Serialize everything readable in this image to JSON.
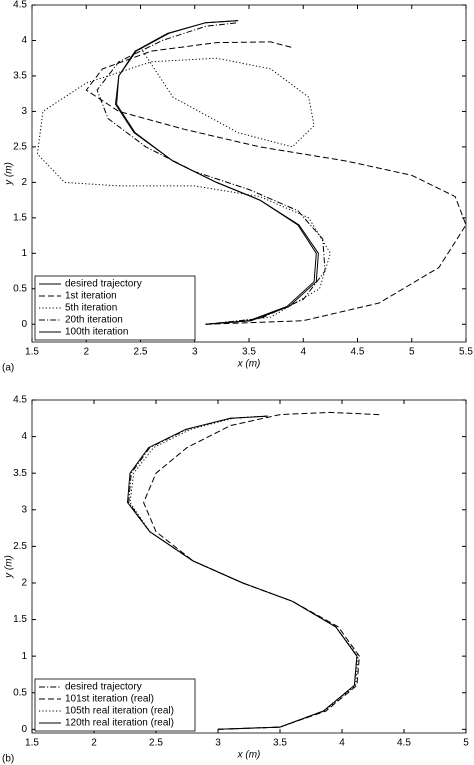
{
  "chart_data": [
    {
      "type": "line",
      "panel": "(a)",
      "xlabel": "x (m)",
      "ylabel": "y (m)",
      "xlim": [
        1.5,
        5.5
      ],
      "ylim": [
        -0.25,
        4.5
      ],
      "xticks": [
        1.5,
        2,
        2.5,
        3,
        3.5,
        4,
        4.5,
        5,
        5.5
      ],
      "yticks": [
        0,
        0.5,
        1,
        1.5,
        2,
        2.5,
        3,
        3.5,
        4,
        4.5
      ],
      "legend": "lower left",
      "series": [
        {
          "name": "desired trajectory",
          "color": "#000000",
          "dash": "solid",
          "x": [
            3.1,
            3.5,
            3.85,
            4.1,
            4.12,
            3.95,
            3.6,
            3.2,
            2.8,
            2.45,
            2.28,
            2.3,
            2.45,
            2.75,
            3.1,
            3.4
          ],
          "values": [
            0,
            0.05,
            0.25,
            0.6,
            1.0,
            1.4,
            1.75,
            2.0,
            2.3,
            2.7,
            3.1,
            3.5,
            3.85,
            4.1,
            4.25,
            4.28
          ]
        },
        {
          "name": "1st iteration",
          "color": "#000000",
          "dash": "dashed",
          "x": [
            3.1,
            4.0,
            4.7,
            5.25,
            5.5,
            5.4,
            5.0,
            4.4,
            3.6,
            2.9,
            2.3,
            2.0,
            2.15,
            2.6,
            3.2,
            3.7,
            3.9
          ],
          "values": [
            0,
            0.05,
            0.3,
            0.8,
            1.4,
            1.8,
            2.1,
            2.3,
            2.5,
            2.75,
            3.0,
            3.3,
            3.6,
            3.85,
            3.97,
            3.98,
            3.9
          ]
        },
        {
          "name": "5th iteration",
          "color": "#000000",
          "dash": "dotted",
          "x": [
            3.1,
            3.7,
            4.15,
            4.25,
            4.05,
            3.6,
            3.0,
            2.3,
            1.8,
            1.55,
            1.6,
            2.0,
            2.6,
            3.2,
            3.7,
            4.05,
            4.1,
            3.9,
            3.4,
            2.8,
            2.5
          ],
          "values": [
            0,
            0.1,
            0.5,
            1.0,
            1.5,
            1.8,
            1.95,
            1.95,
            2.0,
            2.4,
            3.0,
            3.4,
            3.7,
            3.75,
            3.6,
            3.2,
            2.8,
            2.5,
            2.7,
            3.2,
            3.9
          ]
        },
        {
          "name": "20th iteration",
          "color": "#000000",
          "dash": "dashdot",
          "x": [
            3.1,
            3.6,
            4.0,
            4.2,
            4.18,
            3.95,
            3.5,
            3.0,
            2.55,
            2.2,
            2.1,
            2.3,
            2.7,
            3.1,
            3.4
          ],
          "values": [
            0,
            0.08,
            0.35,
            0.75,
            1.2,
            1.6,
            1.9,
            2.15,
            2.5,
            2.9,
            3.3,
            3.7,
            4.0,
            4.2,
            4.25
          ]
        },
        {
          "name": "100th iteration",
          "color": "#000000",
          "dash": "solid",
          "x": [
            3.1,
            3.52,
            3.87,
            4.12,
            4.14,
            3.96,
            3.6,
            3.2,
            2.8,
            2.44,
            2.27,
            2.3,
            2.46,
            2.76,
            3.1,
            3.4
          ],
          "values": [
            0,
            0.05,
            0.25,
            0.6,
            1.0,
            1.4,
            1.75,
            2.0,
            2.3,
            2.7,
            3.1,
            3.5,
            3.85,
            4.1,
            4.25,
            4.28
          ]
        }
      ]
    },
    {
      "type": "line",
      "panel": "(b)",
      "xlabel": "x (m)",
      "ylabel": "y (m)",
      "xlim": [
        1.5,
        5
      ],
      "ylim": [
        -0.05,
        4.5
      ],
      "xticks": [
        1.5,
        2,
        2.5,
        3,
        3.5,
        4,
        4.5,
        5
      ],
      "yticks": [
        0,
        0.5,
        1,
        1.5,
        2,
        2.5,
        3,
        3.5,
        4,
        4.5
      ],
      "legend": "lower left",
      "series": [
        {
          "name": "desired trajectory",
          "color": "#000000",
          "dash": "dashdot",
          "x": [
            3.0,
            3.5,
            3.85,
            4.1,
            4.12,
            3.95,
            3.6,
            3.2,
            2.8,
            2.45,
            2.28,
            2.3,
            2.45,
            2.75,
            3.1,
            3.4
          ],
          "values": [
            0,
            0.03,
            0.25,
            0.6,
            1.0,
            1.4,
            1.75,
            2.0,
            2.3,
            2.7,
            3.1,
            3.5,
            3.85,
            4.1,
            4.25,
            4.28
          ]
        },
        {
          "name": "101st iteration (real)",
          "color": "#000000",
          "dash": "dashed",
          "x": [
            3.0,
            3.5,
            3.87,
            4.12,
            4.14,
            3.97,
            3.6,
            3.2,
            2.8,
            2.5,
            2.4,
            2.5,
            2.75,
            3.1,
            3.5,
            3.9,
            4.3
          ],
          "values": [
            0,
            0.03,
            0.25,
            0.6,
            1.0,
            1.4,
            1.75,
            2.0,
            2.3,
            2.7,
            3.1,
            3.5,
            3.85,
            4.15,
            4.3,
            4.33,
            4.3
          ]
        },
        {
          "name": "105th real iteration (real)",
          "color": "#000000",
          "dash": "dotted",
          "x": [
            3.0,
            3.5,
            3.86,
            4.11,
            4.13,
            3.95,
            3.6,
            3.2,
            2.8,
            2.45,
            2.29,
            2.32,
            2.48,
            2.78,
            3.12,
            3.4
          ],
          "values": [
            0,
            0.03,
            0.25,
            0.6,
            1.0,
            1.4,
            1.75,
            2.0,
            2.3,
            2.7,
            3.1,
            3.5,
            3.85,
            4.1,
            4.25,
            4.28
          ]
        },
        {
          "name": "120th real iteration (real)",
          "color": "#000000",
          "dash": "solid",
          "x": [
            3.0,
            3.5,
            3.85,
            4.1,
            4.12,
            3.95,
            3.6,
            3.2,
            2.8,
            2.45,
            2.27,
            2.29,
            2.44,
            2.74,
            3.1,
            3.4
          ],
          "values": [
            0,
            0.03,
            0.25,
            0.6,
            1.0,
            1.4,
            1.75,
            2.0,
            2.3,
            2.7,
            3.1,
            3.5,
            3.85,
            4.1,
            4.25,
            4.28
          ]
        }
      ]
    }
  ]
}
